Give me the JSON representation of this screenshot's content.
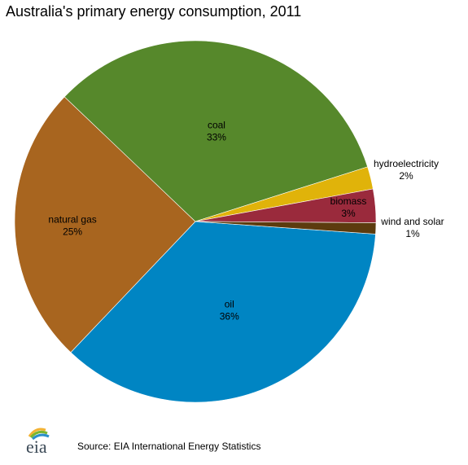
{
  "chart_data": {
    "type": "pie",
    "title": "Australia's primary energy consumption, 2011",
    "slices": [
      {
        "label": "oil",
        "value": 36,
        "percent_label": "36%",
        "color": "#0085C3"
      },
      {
        "label": "natural gas",
        "value": 25,
        "percent_label": "25%",
        "color": "#A8651F"
      },
      {
        "label": "coal",
        "value": 33,
        "percent_label": "33%",
        "color": "#56882B"
      },
      {
        "label": "hydroelectricity",
        "value": 2,
        "percent_label": "2%",
        "color": "#E0B30A"
      },
      {
        "label": "biomass",
        "value": 3,
        "percent_label": "3%",
        "color": "#9A2A3C"
      },
      {
        "label": "wind and solar",
        "value": 1,
        "percent_label": "1%",
        "color": "#5C3B0E"
      }
    ],
    "legend": "none"
  },
  "footer": {
    "logo_text": "eia",
    "source": "Source:  EIA International  Energy Statistics"
  }
}
